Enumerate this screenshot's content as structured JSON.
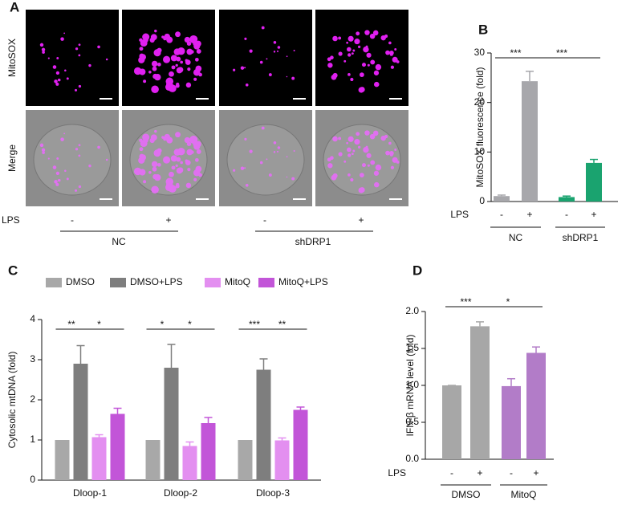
{
  "panel_a": {
    "panel_label": "A",
    "row_labels": [
      "MitoSOX",
      "Merge"
    ],
    "lps_label": "LPS",
    "lps_signs": [
      "-",
      "+",
      "-",
      "+"
    ],
    "groups": [
      "NC",
      "shDRP1"
    ]
  },
  "chart_data": [
    {
      "type": "bar",
      "panel_label": "B",
      "ylabel": "MitoSOX fluorescence (fold)",
      "category_axis_label": "LPS",
      "categories": [
        "-",
        "+",
        "-",
        "+"
      ],
      "values": [
        1.1,
        24.3,
        0.9,
        7.8
      ],
      "errors": [
        0.2,
        2.0,
        0.2,
        0.7
      ],
      "colors": [
        "#a7a7ab",
        "#a7a7ab",
        "#1aa36f",
        "#1aa36f"
      ],
      "groups": [
        "NC",
        "shDRP1"
      ],
      "annotations": [
        "***",
        "***"
      ],
      "ylim": [
        0,
        30
      ],
      "yticks": [
        0,
        10,
        20,
        30
      ]
    },
    {
      "type": "grouped_bar",
      "panel_label": "C",
      "ylabel": "Cytosolic mtDNA (fold)",
      "categories": [
        "Dloop-1",
        "Dloop-2",
        "Dloop-3"
      ],
      "series": [
        {
          "name": "DMSO",
          "color": "#a8a8a8",
          "values": [
            1,
            1,
            1
          ]
        },
        {
          "name": "DMSO+LPS",
          "color": "#7e7e7e",
          "values": [
            2.9,
            2.8,
            2.75
          ],
          "errors": [
            0.45,
            0.58,
            0.27
          ]
        },
        {
          "name": "MitoQ",
          "color": "#e38ff0",
          "values": [
            1.07,
            0.85,
            0.99
          ],
          "errors": [
            0.06,
            0.1,
            0.06
          ]
        },
        {
          "name": "MitoQ+LPS",
          "color": "#c255d8",
          "values": [
            1.65,
            1.42,
            1.75
          ],
          "errors": [
            0.14,
            0.14,
            0.07
          ]
        }
      ],
      "annotations": [
        [
          "**",
          "*"
        ],
        [
          "*",
          "*"
        ],
        [
          "***",
          "**"
        ]
      ],
      "ylim": [
        0,
        4
      ],
      "yticks": [
        0,
        1,
        2,
        3,
        4
      ]
    },
    {
      "type": "bar",
      "panel_label": "D",
      "ylabel": "IFN-β mRNA level (fold)",
      "category_axis_label": "LPS",
      "categories": [
        "-",
        "+",
        "-",
        "+"
      ],
      "values": [
        1.0,
        1.8,
        0.99,
        1.44
      ],
      "errors": [
        0,
        0.06,
        0.1,
        0.08
      ],
      "colors": [
        "#a7a7a7",
        "#a7a7a7",
        "#b27cc8",
        "#b27cc8"
      ],
      "groups": [
        "DMSO",
        "MitoQ"
      ],
      "annotations": [
        "***",
        "*"
      ],
      "ylim": [
        0,
        2.0
      ],
      "yticks": [
        {
          "value": 0,
          "label": "0.0"
        },
        0.5,
        {
          "value": 1,
          "label": "1.0"
        },
        1.5,
        {
          "value": 2,
          "label": "2.0"
        }
      ]
    }
  ]
}
